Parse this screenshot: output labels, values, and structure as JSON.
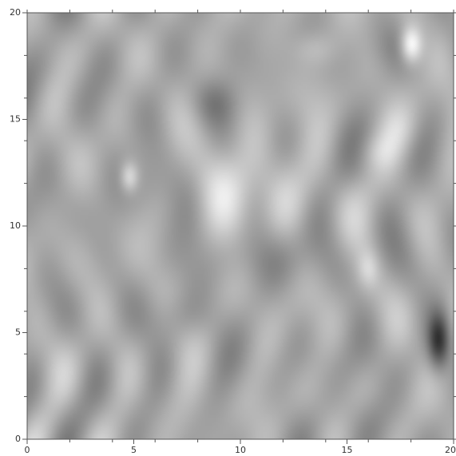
{
  "chart_data": {
    "type": "heatmap",
    "title": "",
    "xlabel": "",
    "ylabel": "",
    "xlim": [
      0,
      20
    ],
    "ylim": [
      0,
      20
    ],
    "x_ticks": [
      0,
      5,
      10,
      15,
      20
    ],
    "y_ticks": [
      0,
      5,
      10,
      15,
      20
    ],
    "x_tick_labels": [
      "0",
      "5",
      "10",
      "15",
      "20"
    ],
    "y_tick_labels": [
      "0",
      "5",
      "10",
      "15",
      "20"
    ],
    "minor_tick_step": 2,
    "colormap": "grayscale",
    "grid": false,
    "legend": "none",
    "features": [
      {
        "name": "bright-spot",
        "x": 18.0,
        "y": 18.5,
        "sx": 0.35,
        "sy": 0.6,
        "a": 0.85
      },
      {
        "name": "bright-spot",
        "x": 4.8,
        "y": 12.3,
        "sx": 0.3,
        "sy": 0.5,
        "a": 0.55
      },
      {
        "name": "bright-region",
        "x": 10.0,
        "y": 12.0,
        "sx": 1.8,
        "sy": 1.6,
        "a": 0.35
      },
      {
        "name": "bright-spot",
        "x": 13.5,
        "y": 18.3,
        "sx": 0.8,
        "sy": 0.6,
        "a": 0.25
      },
      {
        "name": "bright-spot",
        "x": 16.5,
        "y": 13.5,
        "sx": 0.8,
        "sy": 0.6,
        "a": 0.2
      },
      {
        "name": "bright-spot",
        "x": 16.0,
        "y": 8.0,
        "sx": 0.35,
        "sy": 0.6,
        "a": 0.3
      },
      {
        "name": "bright-spot",
        "x": 17.5,
        "y": 14.5,
        "sx": 0.6,
        "sy": 0.7,
        "a": 0.2
      },
      {
        "name": "dark-spot",
        "x": 19.3,
        "y": 4.6,
        "sx": 0.35,
        "sy": 0.9,
        "a": -0.95
      },
      {
        "name": "dark-spot",
        "x": 8.8,
        "y": 15.8,
        "sx": 0.8,
        "sy": 0.8,
        "a": -0.35
      },
      {
        "name": "dark-spot",
        "x": 5.8,
        "y": 12.0,
        "sx": 0.7,
        "sy": 1.2,
        "a": -0.3
      },
      {
        "name": "dark-region",
        "x": 7.2,
        "y": 5.8,
        "sx": 1.0,
        "sy": 0.8,
        "a": -0.2
      },
      {
        "name": "dark-region",
        "x": 11.0,
        "y": 8.5,
        "sx": 1.5,
        "sy": 1.0,
        "a": -0.18
      },
      {
        "name": "dark-region",
        "x": 1.0,
        "y": 17.5,
        "sx": 1.0,
        "sy": 1.0,
        "a": -0.15
      },
      {
        "name": "dark-region",
        "x": 15.5,
        "y": 1.0,
        "sx": 1.5,
        "sy": 0.9,
        "a": -0.15
      },
      {
        "name": "dark-region",
        "x": 17.0,
        "y": 18.5,
        "sx": 0.6,
        "sy": 0.8,
        "a": -0.15
      }
    ]
  }
}
